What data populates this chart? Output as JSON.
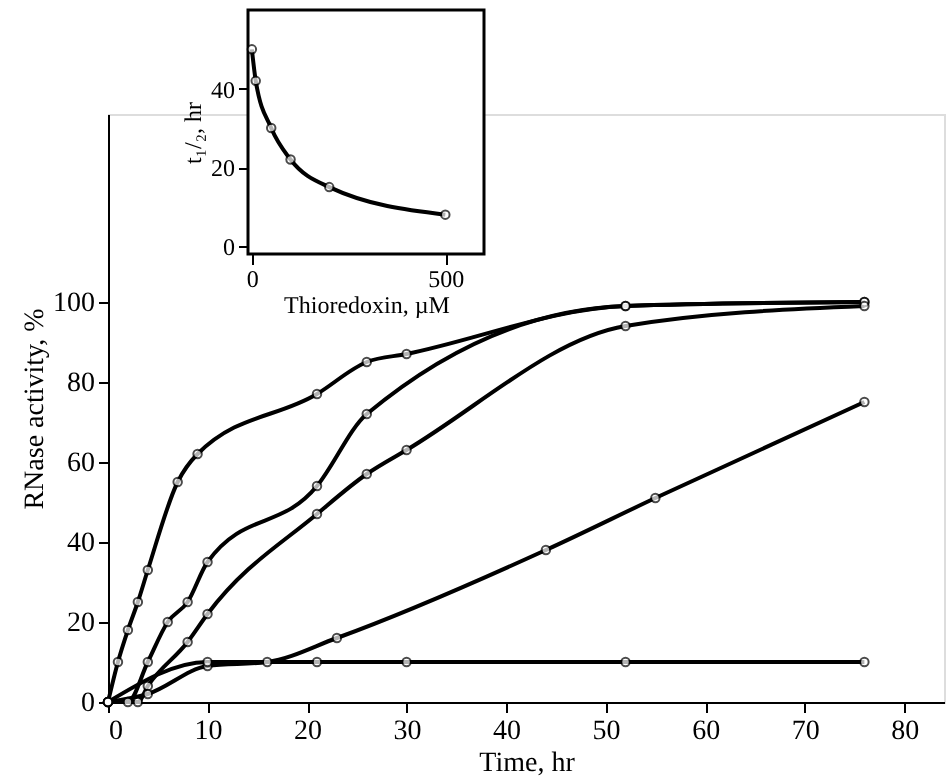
{
  "chart_data": [
    {
      "type": "line",
      "xlabel": "Time, hr",
      "ylabel": "RNase activity, %",
      "xlim": [
        0,
        84
      ],
      "ylim": [
        0,
        147
      ],
      "xticks": [
        0,
        10,
        20,
        30,
        40,
        50,
        60,
        70,
        80
      ],
      "yticks": [
        0,
        20,
        40,
        60,
        80,
        100
      ],
      "grid": false,
      "legend": false,
      "marker": "circle",
      "line_style": "solid",
      "series": [
        {
          "color": "#000000",
          "x": [
            0,
            1,
            2,
            3,
            4,
            7,
            9,
            21,
            26,
            30,
            52,
            76
          ],
          "values": [
            0,
            10,
            18,
            25,
            33,
            55,
            62,
            77,
            85,
            87,
            99,
            100
          ]
        },
        {
          "color": "#000000",
          "x": [
            0,
            2,
            4,
            6,
            8,
            10,
            21,
            26,
            52,
            76
          ],
          "values": [
            0,
            0,
            10,
            20,
            25,
            35,
            54,
            72,
            99,
            100
          ]
        },
        {
          "color": "#000000",
          "x": [
            0,
            3,
            4,
            8,
            10,
            21,
            26,
            30,
            52,
            76
          ],
          "values": [
            0,
            0,
            4,
            15,
            22,
            47,
            57,
            63,
            94,
            99
          ]
        },
        {
          "color": "#000000",
          "x": [
            0,
            4,
            10,
            16,
            23,
            44,
            55,
            76
          ],
          "values": [
            0,
            2,
            9,
            10,
            16,
            38,
            51,
            75
          ]
        },
        {
          "color": "#000000",
          "x": [
            0,
            10,
            21,
            30,
            52,
            76
          ],
          "values": [
            0,
            10,
            10,
            10,
            10,
            10
          ]
        }
      ]
    },
    {
      "type": "line",
      "xlabel": "Thioredoxin, µM",
      "ylabel": "t₁/₂, hr",
      "xlim": [
        -10,
        600
      ],
      "ylim": [
        -2,
        60
      ],
      "xticks": [
        0,
        500
      ],
      "yticks": [
        0,
        20,
        40
      ],
      "grid": false,
      "legend": false,
      "marker": "circle",
      "line_style": "solid",
      "series": [
        {
          "color": "#000000",
          "x": [
            0,
            10,
            50,
            100,
            200,
            500
          ],
          "values": [
            50,
            42,
            30,
            22,
            15,
            8
          ]
        }
      ]
    }
  ]
}
